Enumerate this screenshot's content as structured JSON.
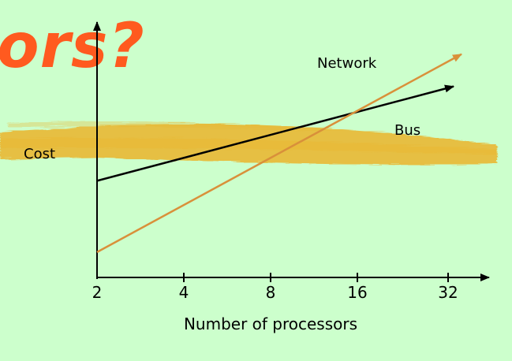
{
  "slide": {
    "title_fragment": "ors?",
    "colors": {
      "background": "#ccffcc",
      "title": "#ff5a1f",
      "brush": "#e9b833",
      "bus_line": "#000000",
      "network_line": "#d9903a",
      "axis": "#000000"
    }
  },
  "chart_data": {
    "type": "line",
    "ylabel": "Cost",
    "xlabel": "Number of processors",
    "categories": [
      "2",
      "4",
      "8",
      "16",
      "32"
    ],
    "yticks": false,
    "series": [
      {
        "name": "Bus",
        "color": "#000000",
        "start": 0.42,
        "end": 0.83
      },
      {
        "name": "Network",
        "color": "#d9903a",
        "start": 0.11,
        "end": 0.97
      }
    ]
  }
}
